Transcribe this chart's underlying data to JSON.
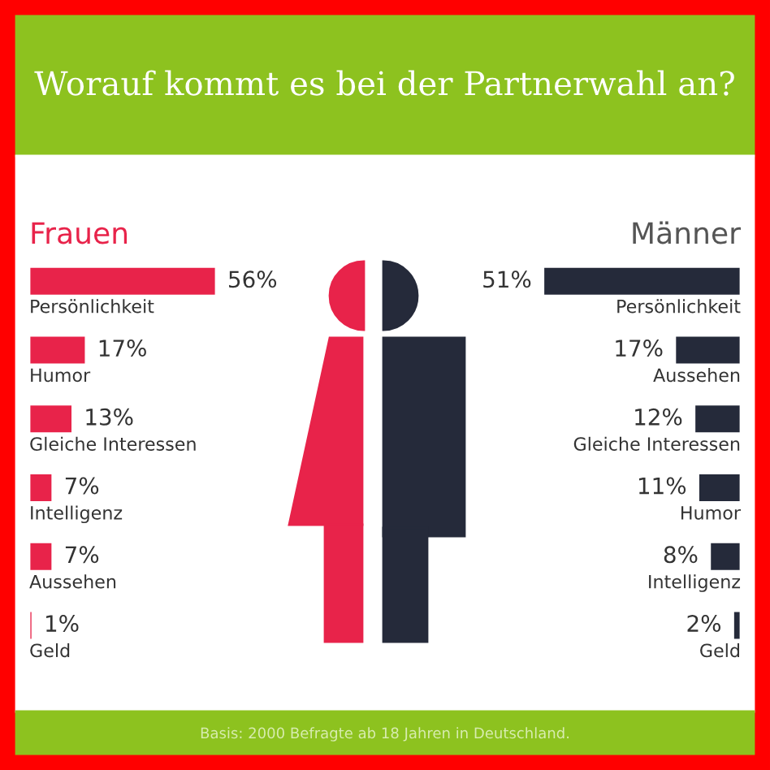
{
  "chart_data": [
    {
      "type": "bar",
      "orientation": "horizontal",
      "title": "Worauf kommt es bei der Partnerwahl an?",
      "subtitle": "Frauen",
      "categories": [
        "Persönlichkeit",
        "Humor",
        "Gleiche Interessen",
        "Intelligenz",
        "Aussehen",
        "Geld"
      ],
      "values": [
        56,
        17,
        13,
        7,
        7,
        1
      ],
      "value_labels": [
        "56%",
        "17%",
        "13%",
        "7%",
        "7%",
        "1%"
      ],
      "color": "#e8234a",
      "annotations": [
        "Basis: 2000 Befragte ab 18 Jahren in Deutschland."
      ]
    },
    {
      "type": "bar",
      "orientation": "horizontal",
      "subtitle": "Männer",
      "categories": [
        "Persönlichkeit",
        "Aussehen",
        "Gleiche Interessen",
        "Humor",
        "Intelligenz",
        "Geld"
      ],
      "values": [
        51,
        17,
        12,
        11,
        8,
        2
      ],
      "value_labels": [
        "51%",
        "17%",
        "12%",
        "11%",
        "8%",
        "2%"
      ],
      "color": "#252a3a"
    }
  ]
}
